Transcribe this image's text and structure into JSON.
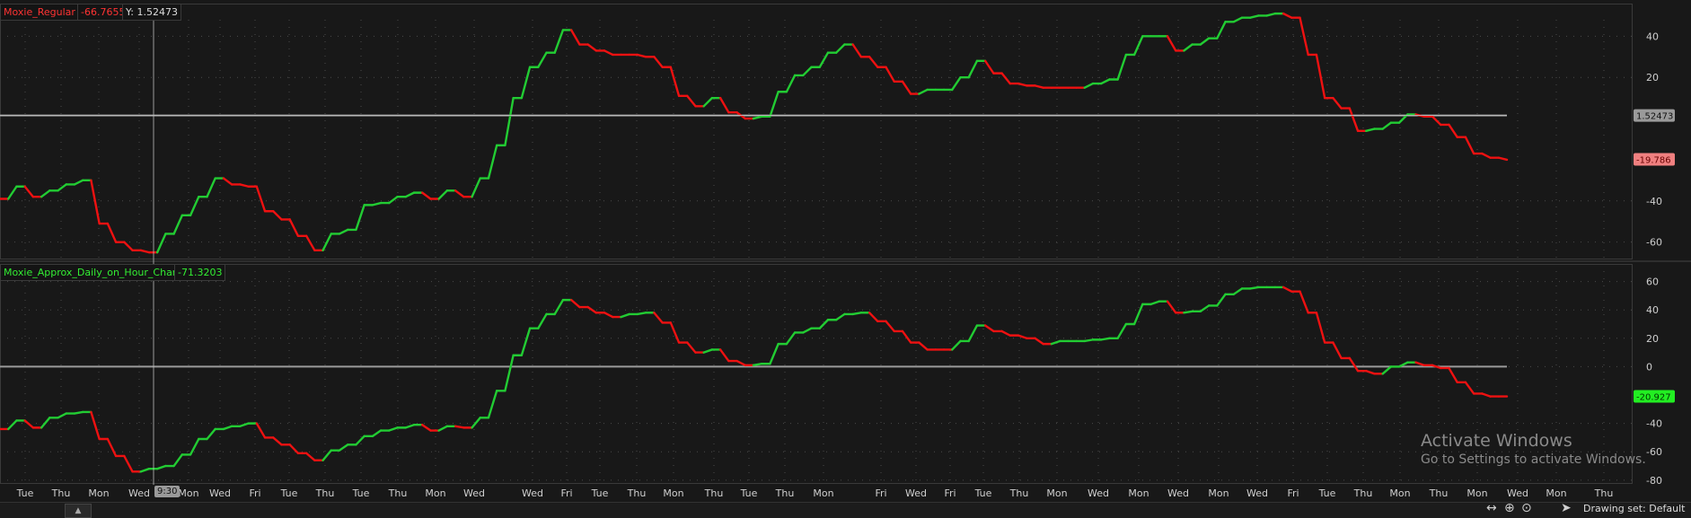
{
  "colors": {
    "background": "#181818",
    "rise": "#22cc33",
    "fall": "#ee1111",
    "grid": "#4a4a4a",
    "zero_line": "#9a9a9a",
    "price_box_gray": "#9a9a9a",
    "price_box_red": "#f08080",
    "price_box_green": "#22ee22"
  },
  "upper_pane": {
    "study_name": "Moxie_Regular",
    "study_value": "-66.7655",
    "cursor_readout": "Y: 1.52473",
    "y_ticks": [
      "40",
      "20",
      "-40",
      "-60"
    ],
    "price_tags": [
      "1.52473",
      "-19.786"
    ]
  },
  "lower_pane": {
    "study_name": "Moxie_Approx_Daily_on_Hour_Chart",
    "study_value": "-71.3203",
    "y_ticks": [
      "60",
      "40",
      "20",
      "0",
      "-40",
      "-60",
      "-80"
    ],
    "price_tags": [
      "-20.927"
    ]
  },
  "cursor_time": "9:30",
  "x_axis_labels": [
    "Tue",
    "Thu",
    "Mon",
    "Wed",
    "Mon",
    "Wed",
    "Fri",
    "Tue",
    "Thu",
    "Tue",
    "Thu",
    "Mon",
    "Wed",
    "Wed",
    "Fri",
    "Tue",
    "Thu",
    "Mon",
    "Thu",
    "Tue",
    "Thu",
    "Mon",
    "Fri",
    "Wed",
    "Fri",
    "Tue",
    "Thu",
    "Mon",
    "Wed",
    "Mon",
    "Wed",
    "Mon",
    "Wed",
    "Fri",
    "Tue",
    "Thu",
    "Mon",
    "Thu",
    "Mon",
    "Wed",
    "Mon",
    "Thu"
  ],
  "toolbar_icons": [
    "pan-arrows-icon",
    "crosshair-icon",
    "zoom-icon",
    "cursor-icon"
  ],
  "drawing_set_label": "Drawing set: Default",
  "watermark": {
    "title": "Activate Windows",
    "subtitle": "Go to Settings to activate Windows."
  },
  "chart_data": [
    {
      "type": "line",
      "style": "step",
      "name": "Moxie_Regular",
      "ylim": [
        -68,
        48
      ],
      "reference_line": 1.52473,
      "legend": "none",
      "grid": true,
      "values": [
        -39,
        -39,
        -33,
        -33,
        -38,
        -38,
        -35,
        -35,
        -32,
        -32,
        -30,
        -30,
        -51,
        -51,
        -60,
        -60,
        -64,
        -64,
        -65,
        -65,
        -56,
        -56,
        -47,
        -47,
        -38,
        -38,
        -29,
        -29,
        -32,
        -32,
        -33,
        -33,
        -45,
        -45,
        -49,
        -49,
        -57,
        -57,
        -64,
        -64,
        -56,
        -56,
        -54,
        -54,
        -42,
        -42,
        -41,
        -41,
        -38,
        -38,
        -36,
        -36,
        -39,
        -39,
        -35,
        -35,
        -38,
        -38,
        -29,
        -29,
        -13,
        -13,
        10,
        10,
        25,
        25,
        32,
        32,
        43,
        43,
        36,
        36,
        33,
        33,
        31,
        31,
        31,
        31,
        30,
        30,
        25,
        25,
        11,
        11,
        6,
        6,
        10,
        10,
        3,
        3,
        0,
        0,
        1,
        1,
        13,
        13,
        21,
        21,
        25,
        25,
        32,
        32,
        36,
        36,
        30,
        30,
        25,
        25,
        18,
        18,
        12,
        12,
        14,
        14,
        14,
        14,
        20,
        20,
        28,
        28,
        22,
        22,
        17,
        17,
        16,
        16,
        15,
        15,
        15,
        15,
        15,
        15,
        17,
        17,
        19,
        19,
        31,
        31,
        40,
        40,
        40,
        40,
        33,
        33,
        36,
        36,
        39,
        39,
        47,
        47,
        49,
        49,
        50,
        50,
        51,
        51,
        49,
        49,
        31,
        31,
        10,
        10,
        5,
        5,
        -6,
        -6,
        -5,
        -5,
        -2,
        -2,
        2,
        2,
        1,
        1,
        -3,
        -3,
        -9,
        -9,
        -17,
        -17,
        -19,
        -19,
        -20
      ]
    },
    {
      "type": "line",
      "style": "step",
      "name": "Moxie_Approx_Daily_on_Hour_Chart",
      "ylim": [
        -82,
        61
      ],
      "reference_line": 0,
      "legend": "none",
      "grid": true,
      "values": [
        -44,
        -44,
        -38,
        -38,
        -43,
        -43,
        -36,
        -36,
        -33,
        -33,
        -32,
        -32,
        -51,
        -51,
        -63,
        -63,
        -74,
        -74,
        -72,
        -72,
        -70,
        -70,
        -62,
        -62,
        -51,
        -51,
        -44,
        -44,
        -42,
        -42,
        -40,
        -40,
        -50,
        -50,
        -55,
        -55,
        -61,
        -61,
        -66,
        -66,
        -59,
        -59,
        -55,
        -55,
        -49,
        -49,
        -45,
        -45,
        -43,
        -43,
        -41,
        -41,
        -45,
        -45,
        -42,
        -42,
        -43,
        -43,
        -36,
        -36,
        -17,
        -17,
        8,
        8,
        27,
        27,
        37,
        37,
        47,
        47,
        42,
        42,
        38,
        38,
        35,
        35,
        37,
        37,
        38,
        38,
        31,
        31,
        17,
        17,
        10,
        10,
        12,
        12,
        4,
        4,
        1,
        1,
        2,
        2,
        16,
        16,
        24,
        24,
        27,
        27,
        33,
        33,
        37,
        37,
        38,
        38,
        32,
        32,
        25,
        25,
        17,
        17,
        12,
        12,
        12,
        12,
        18,
        18,
        29,
        29,
        25,
        25,
        22,
        22,
        20,
        20,
        16,
        16,
        18,
        18,
        18,
        18,
        19,
        19,
        20,
        20,
        30,
        30,
        44,
        44,
        46,
        46,
        38,
        38,
        39,
        39,
        43,
        43,
        51,
        51,
        55,
        55,
        56,
        56,
        56,
        56,
        53,
        53,
        38,
        38,
        17,
        17,
        6,
        6,
        -3,
        -3,
        -5,
        -5,
        0,
        0,
        3,
        3,
        1,
        1,
        -1,
        -1,
        -11,
        -11,
        -19,
        -19,
        -21,
        -21,
        -21
      ]
    }
  ]
}
